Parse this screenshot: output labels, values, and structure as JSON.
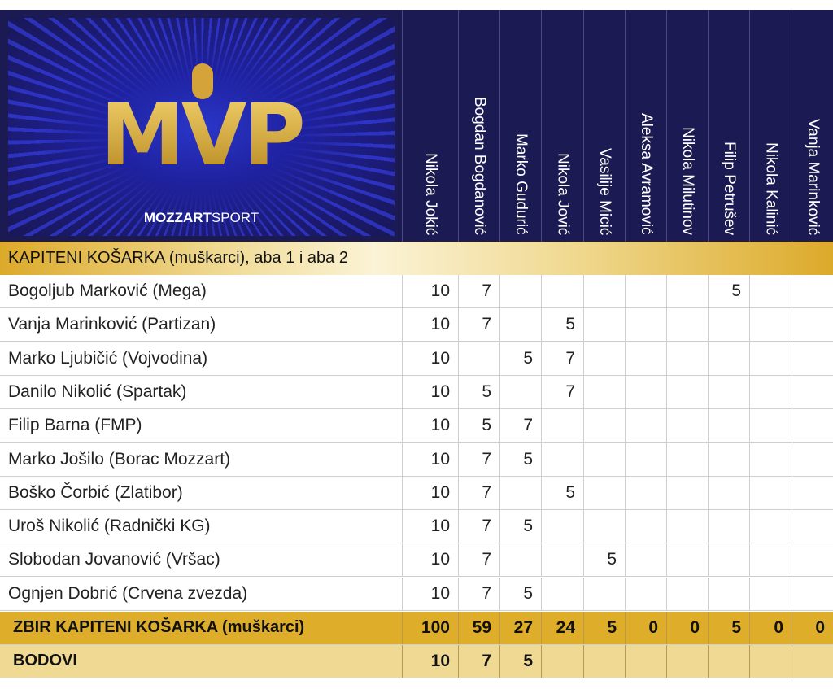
{
  "logo": {
    "title": "MVP",
    "brand_bold": "MOZZART",
    "brand_light": "SPORT"
  },
  "columns": [
    "Nikola Jokić",
    "Bogdan Bogdanović",
    "Marko Gudurić",
    "Nikola Jović",
    "Vasilije Micić",
    "Aleksa Avramović",
    "Nikola Milutinov",
    "Filip Petrušev",
    "Nikola Kalinić",
    "Vanja Marinković"
  ],
  "category": "KAPITENI KOŠARKA (muškarci), aba 1 i aba 2",
  "rows": [
    {
      "name": "Bogoljub Marković (Mega)",
      "votes": [
        "10",
        "7",
        "",
        "",
        "",
        "",
        "",
        "5",
        "",
        ""
      ]
    },
    {
      "name": "Vanja Marinković (Partizan)",
      "votes": [
        "10",
        "7",
        "",
        "5",
        "",
        "",
        "",
        "",
        "",
        ""
      ]
    },
    {
      "name": "Marko Ljubičić (Vojvodina)",
      "votes": [
        "10",
        "",
        "5",
        "7",
        "",
        "",
        "",
        "",
        "",
        ""
      ]
    },
    {
      "name": "Danilo Nikolić (Spartak)",
      "votes": [
        "10",
        "5",
        "",
        "7",
        "",
        "",
        "",
        "",
        "",
        ""
      ]
    },
    {
      "name": "Filip Barna (FMP)",
      "votes": [
        "10",
        "5",
        "7",
        "",
        "",
        "",
        "",
        "",
        "",
        ""
      ]
    },
    {
      "name": "Marko Jošilo (Borac Mozzart)",
      "votes": [
        "10",
        "7",
        "5",
        "",
        "",
        "",
        "",
        "",
        "",
        ""
      ]
    },
    {
      "name": "Boško Čorbić (Zlatibor)",
      "votes": [
        "10",
        "7",
        "",
        "5",
        "",
        "",
        "",
        "",
        "",
        ""
      ]
    },
    {
      "name": "Uroš Nikolić (Radnički KG)",
      "votes": [
        "10",
        "7",
        "5",
        "",
        "",
        "",
        "",
        "",
        "",
        ""
      ]
    },
    {
      "name": "Slobodan Jovanović (Vršac)",
      "votes": [
        "10",
        "7",
        "",
        "",
        "5",
        "",
        "",
        "",
        "",
        ""
      ]
    },
    {
      "name": "Ognjen Dobrić (Crvena zvezda)",
      "votes": [
        "10",
        "7",
        "5",
        "",
        "",
        "",
        "",
        "",
        "",
        ""
      ]
    }
  ],
  "total": {
    "name": "ZBIR KAPITENI KOŠARKA (muškarci)",
    "votes": [
      "100",
      "59",
      "27",
      "24",
      "5",
      "0",
      "0",
      "5",
      "0",
      "0"
    ]
  },
  "points": {
    "name": "BODOVI",
    "votes": [
      "10",
      "7",
      "5",
      "",
      "",
      "",
      "",
      "",
      "",
      ""
    ]
  }
}
